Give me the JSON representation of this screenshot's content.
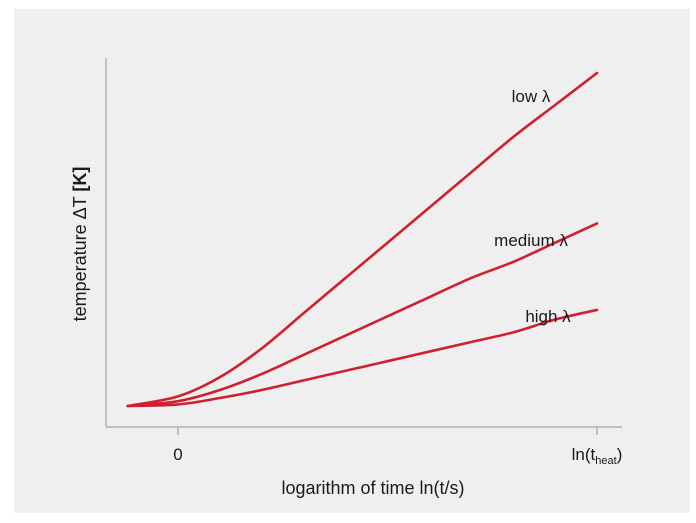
{
  "chart_data": {
    "type": "line",
    "title": "",
    "xlabel": "logarithm of time ln(t/s)",
    "ylabel_main": "temperature ΔT ",
    "ylabel_unit": "[K]",
    "x_ticks": [
      {
        "label": "0",
        "x": 0
      },
      {
        "label": "ln(t",
        "sub": "heat",
        "suffix": ")",
        "x": 1
      }
    ],
    "xlim": [
      -0.12,
      1.06
    ],
    "ylim": [
      -0.06,
      1.06
    ],
    "grid": false,
    "colors": {
      "curve": "#d0202f",
      "axis": "#b0b0b0"
    },
    "series": [
      {
        "name": "low λ",
        "x": [
          -0.12,
          0.0,
          0.1,
          0.2,
          0.3,
          0.4,
          0.5,
          0.6,
          0.7,
          0.8,
          0.9,
          1.0
        ],
        "y": [
          0.0,
          0.03,
          0.09,
          0.18,
          0.29,
          0.4,
          0.51,
          0.62,
          0.73,
          0.84,
          0.94,
          1.04
        ]
      },
      {
        "name": "medium λ",
        "x": [
          -0.12,
          0.0,
          0.1,
          0.2,
          0.3,
          0.4,
          0.5,
          0.6,
          0.7,
          0.8,
          0.9,
          1.0
        ],
        "y": [
          0.0,
          0.015,
          0.05,
          0.1,
          0.16,
          0.22,
          0.28,
          0.34,
          0.4,
          0.45,
          0.51,
          0.57
        ]
      },
      {
        "name": "high λ",
        "x": [
          -0.12,
          0.0,
          0.1,
          0.2,
          0.3,
          0.4,
          0.5,
          0.6,
          0.7,
          0.8,
          0.9,
          1.0
        ],
        "y": [
          0.0,
          0.005,
          0.025,
          0.05,
          0.08,
          0.11,
          0.14,
          0.17,
          0.2,
          0.23,
          0.27,
          0.3
        ]
      }
    ]
  }
}
